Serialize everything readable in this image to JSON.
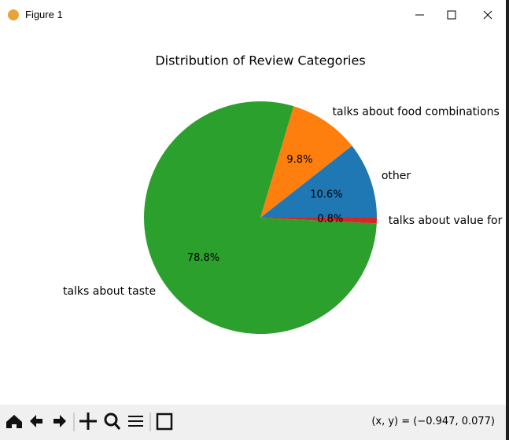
{
  "window": {
    "title": "Figure 1",
    "status": "(x, y) = (−0.947, 0.077)"
  },
  "chart_data": {
    "type": "pie",
    "title": "Distribution of Review Categories",
    "categories": [
      "other",
      "talks about food combinations",
      "talks about taste",
      "talks about value for"
    ],
    "values": [
      10.6,
      9.8,
      78.8,
      0.8
    ],
    "value_labels": [
      "10.6%",
      "9.8%",
      "78.8%",
      "0.8%"
    ],
    "colors": [
      "#1f77b4",
      "#ff7f0e",
      "#2ca02c",
      "#d62728"
    ]
  }
}
